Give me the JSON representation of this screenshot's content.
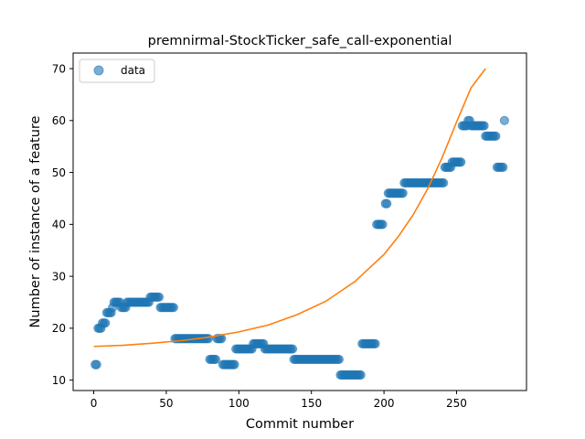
{
  "chart_data": {
    "type": "scatter",
    "title": "premnirmal-StockTicker_safe_call-exponential",
    "xlabel": "Commit number",
    "ylabel": "Number of instance of a feature",
    "xlim": [
      -14.2,
      298.2
    ],
    "ylim": [
      8.0,
      73.0
    ],
    "xticks": [
      0,
      50,
      100,
      150,
      200,
      250
    ],
    "yticks": [
      10,
      20,
      30,
      40,
      50,
      60,
      70
    ],
    "grid": false,
    "legend_position": "top-left",
    "series": [
      {
        "name": "data",
        "kind": "scatter",
        "color": "#1f77b4",
        "points": [
          [
            1,
            13
          ],
          [
            2,
            13
          ],
          [
            3,
            20
          ],
          [
            4,
            20
          ],
          [
            5,
            20
          ],
          [
            6,
            21
          ],
          [
            7,
            21
          ],
          [
            8,
            21
          ],
          [
            9,
            23
          ],
          [
            10,
            23
          ],
          [
            11,
            23
          ],
          [
            12,
            23
          ],
          [
            13,
            24
          ],
          [
            14,
            25
          ],
          [
            15,
            25
          ],
          [
            16,
            25
          ],
          [
            17,
            25
          ],
          [
            18,
            25
          ],
          [
            19,
            24
          ],
          [
            20,
            24
          ],
          [
            21,
            24
          ],
          [
            22,
            24
          ],
          [
            23,
            25
          ],
          [
            24,
            25
          ],
          [
            25,
            25
          ],
          [
            26,
            25
          ],
          [
            27,
            25
          ],
          [
            28,
            25
          ],
          [
            29,
            25
          ],
          [
            30,
            25
          ],
          [
            31,
            25
          ],
          [
            32,
            25
          ],
          [
            33,
            25
          ],
          [
            34,
            25
          ],
          [
            35,
            25
          ],
          [
            36,
            25
          ],
          [
            37,
            25
          ],
          [
            38,
            25
          ],
          [
            39,
            26
          ],
          [
            40,
            26
          ],
          [
            41,
            26
          ],
          [
            42,
            26
          ],
          [
            43,
            26
          ],
          [
            44,
            26
          ],
          [
            45,
            26
          ],
          [
            46,
            24
          ],
          [
            47,
            24
          ],
          [
            48,
            24
          ],
          [
            49,
            24
          ],
          [
            50,
            24
          ],
          [
            51,
            24
          ],
          [
            52,
            24
          ],
          [
            53,
            24
          ],
          [
            54,
            24
          ],
          [
            55,
            24
          ],
          [
            56,
            18
          ],
          [
            57,
            18
          ],
          [
            58,
            18
          ],
          [
            59,
            18
          ],
          [
            60,
            18
          ],
          [
            61,
            18
          ],
          [
            62,
            18
          ],
          [
            63,
            18
          ],
          [
            64,
            18
          ],
          [
            65,
            18
          ],
          [
            66,
            18
          ],
          [
            67,
            18
          ],
          [
            68,
            18
          ],
          [
            69,
            18
          ],
          [
            70,
            18
          ],
          [
            71,
            18
          ],
          [
            72,
            18
          ],
          [
            73,
            18
          ],
          [
            74,
            18
          ],
          [
            75,
            18
          ],
          [
            76,
            18
          ],
          [
            77,
            18
          ],
          [
            78,
            18
          ],
          [
            79,
            18
          ],
          [
            80,
            14
          ],
          [
            81,
            14
          ],
          [
            82,
            14
          ],
          [
            83,
            14
          ],
          [
            84,
            14
          ],
          [
            85,
            18
          ],
          [
            86,
            18
          ],
          [
            87,
            18
          ],
          [
            88,
            18
          ],
          [
            89,
            13
          ],
          [
            90,
            13
          ],
          [
            91,
            13
          ],
          [
            92,
            13
          ],
          [
            93,
            13
          ],
          [
            94,
            13
          ],
          [
            95,
            13
          ],
          [
            96,
            13
          ],
          [
            97,
            13
          ],
          [
            98,
            16
          ],
          [
            99,
            16
          ],
          [
            100,
            16
          ],
          [
            101,
            16
          ],
          [
            102,
            16
          ],
          [
            103,
            16
          ],
          [
            104,
            16
          ],
          [
            105,
            16
          ],
          [
            106,
            16
          ],
          [
            107,
            16
          ],
          [
            108,
            16
          ],
          [
            109,
            16
          ],
          [
            110,
            17
          ],
          [
            111,
            17
          ],
          [
            112,
            17
          ],
          [
            113,
            17
          ],
          [
            114,
            17
          ],
          [
            115,
            17
          ],
          [
            116,
            17
          ],
          [
            117,
            17
          ],
          [
            118,
            16
          ],
          [
            119,
            16
          ],
          [
            120,
            16
          ],
          [
            121,
            16
          ],
          [
            122,
            16
          ],
          [
            123,
            16
          ],
          [
            124,
            16
          ],
          [
            125,
            16
          ],
          [
            126,
            16
          ],
          [
            127,
            16
          ],
          [
            128,
            16
          ],
          [
            129,
            16
          ],
          [
            130,
            16
          ],
          [
            131,
            16
          ],
          [
            132,
            16
          ],
          [
            133,
            16
          ],
          [
            134,
            16
          ],
          [
            135,
            16
          ],
          [
            136,
            16
          ],
          [
            137,
            16
          ],
          [
            138,
            14
          ],
          [
            139,
            14
          ],
          [
            140,
            14
          ],
          [
            141,
            14
          ],
          [
            142,
            14
          ],
          [
            143,
            14
          ],
          [
            144,
            14
          ],
          [
            145,
            14
          ],
          [
            146,
            14
          ],
          [
            147,
            14
          ],
          [
            148,
            14
          ],
          [
            149,
            14
          ],
          [
            150,
            14
          ],
          [
            151,
            14
          ],
          [
            152,
            14
          ],
          [
            153,
            14
          ],
          [
            154,
            14
          ],
          [
            155,
            14
          ],
          [
            156,
            14
          ],
          [
            157,
            14
          ],
          [
            158,
            14
          ],
          [
            159,
            14
          ],
          [
            160,
            14
          ],
          [
            161,
            14
          ],
          [
            162,
            14
          ],
          [
            163,
            14
          ],
          [
            164,
            14
          ],
          [
            165,
            14
          ],
          [
            166,
            14
          ],
          [
            167,
            14
          ],
          [
            168,
            14
          ],
          [
            169,
            14
          ],
          [
            170,
            11
          ],
          [
            171,
            11
          ],
          [
            172,
            11
          ],
          [
            173,
            11
          ],
          [
            174,
            11
          ],
          [
            175,
            11
          ],
          [
            176,
            11
          ],
          [
            177,
            11
          ],
          [
            178,
            11
          ],
          [
            179,
            11
          ],
          [
            180,
            11
          ],
          [
            181,
            11
          ],
          [
            182,
            11
          ],
          [
            183,
            11
          ],
          [
            184,
            11
          ],
          [
            185,
            17
          ],
          [
            186,
            17
          ],
          [
            187,
            17
          ],
          [
            188,
            17
          ],
          [
            189,
            17
          ],
          [
            190,
            17
          ],
          [
            191,
            17
          ],
          [
            192,
            17
          ],
          [
            193,
            17
          ],
          [
            194,
            17
          ],
          [
            195,
            40
          ],
          [
            196,
            40
          ],
          [
            197,
            40
          ],
          [
            198,
            40
          ],
          [
            199,
            40
          ],
          [
            201,
            44
          ],
          [
            202,
            44
          ],
          [
            203,
            46
          ],
          [
            204,
            46
          ],
          [
            205,
            46
          ],
          [
            206,
            46
          ],
          [
            207,
            46
          ],
          [
            208,
            46
          ],
          [
            209,
            46
          ],
          [
            210,
            46
          ],
          [
            211,
            46
          ],
          [
            212,
            46
          ],
          [
            213,
            46
          ],
          [
            214,
            48
          ],
          [
            215,
            48
          ],
          [
            216,
            48
          ],
          [
            217,
            48
          ],
          [
            218,
            48
          ],
          [
            219,
            48
          ],
          [
            220,
            48
          ],
          [
            221,
            48
          ],
          [
            222,
            48
          ],
          [
            223,
            48
          ],
          [
            224,
            48
          ],
          [
            225,
            48
          ],
          [
            226,
            48
          ],
          [
            227,
            48
          ],
          [
            228,
            48
          ],
          [
            229,
            48
          ],
          [
            230,
            48
          ],
          [
            231,
            48
          ],
          [
            232,
            48
          ],
          [
            233,
            48
          ],
          [
            234,
            48
          ],
          [
            235,
            48
          ],
          [
            236,
            48
          ],
          [
            237,
            48
          ],
          [
            238,
            48
          ],
          [
            239,
            48
          ],
          [
            240,
            48
          ],
          [
            241,
            48
          ],
          [
            242,
            51
          ],
          [
            243,
            51
          ],
          [
            244,
            51
          ],
          [
            245,
            51
          ],
          [
            246,
            51
          ],
          [
            247,
            52
          ],
          [
            248,
            52
          ],
          [
            249,
            52
          ],
          [
            250,
            52
          ],
          [
            251,
            52
          ],
          [
            252,
            52
          ],
          [
            253,
            52
          ],
          [
            254,
            59
          ],
          [
            255,
            59
          ],
          [
            256,
            59
          ],
          [
            257,
            59
          ],
          [
            258,
            60
          ],
          [
            259,
            60
          ],
          [
            260,
            59
          ],
          [
            261,
            59
          ],
          [
            262,
            59
          ],
          [
            263,
            59
          ],
          [
            264,
            59
          ],
          [
            265,
            59
          ],
          [
            266,
            59
          ],
          [
            267,
            59
          ],
          [
            268,
            59
          ],
          [
            269,
            59
          ],
          [
            270,
            57
          ],
          [
            271,
            57
          ],
          [
            272,
            57
          ],
          [
            273,
            57
          ],
          [
            274,
            57
          ],
          [
            275,
            57
          ],
          [
            276,
            57
          ],
          [
            277,
            57
          ],
          [
            278,
            51
          ],
          [
            279,
            51
          ],
          [
            280,
            51
          ],
          [
            281,
            51
          ],
          [
            282,
            51
          ],
          [
            283,
            60
          ]
        ]
      },
      {
        "kind": "line",
        "color": "#ff7f0e",
        "points": [
          [
            0,
            16.5
          ],
          [
            20,
            16.7
          ],
          [
            40,
            17.1
          ],
          [
            60,
            17.6
          ],
          [
            80,
            18.3
          ],
          [
            100,
            19.3
          ],
          [
            120,
            20.6
          ],
          [
            140,
            22.6
          ],
          [
            160,
            25.2
          ],
          [
            180,
            29.0
          ],
          [
            200,
            34.2
          ],
          [
            210,
            37.7
          ],
          [
            220,
            41.8
          ],
          [
            230,
            46.8
          ],
          [
            240,
            52.8
          ],
          [
            250,
            59.7
          ],
          [
            260,
            66.3
          ],
          [
            270,
            70.0
          ]
        ]
      }
    ]
  }
}
